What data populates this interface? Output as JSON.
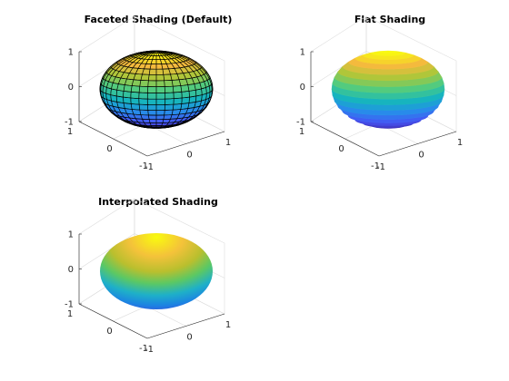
{
  "chart_data": [
    {
      "type": "surface",
      "shading": "faceted",
      "title": "Faceted Shading (Default)",
      "surface": "ellipsoid",
      "x_range": [
        -1,
        1
      ],
      "y_range": [
        -1,
        1
      ],
      "z_range": [
        -1,
        1
      ],
      "x_ticks": [
        "-1",
        "0",
        "1"
      ],
      "y_ticks": [
        "1",
        "0",
        "-1"
      ],
      "z_ticks": [
        "1",
        "0",
        "-1"
      ],
      "colormap": "parula",
      "edge_color": "#000000",
      "grid": true
    },
    {
      "type": "surface",
      "shading": "flat",
      "title": "Flat Shading",
      "surface": "ellipsoid",
      "x_range": [
        -1,
        1
      ],
      "y_range": [
        -1,
        1
      ],
      "z_range": [
        -1,
        1
      ],
      "x_ticks": [
        "-1",
        "0",
        "1"
      ],
      "y_ticks": [
        "1",
        "0",
        "-1"
      ],
      "z_ticks": [
        "1",
        "0",
        "-1"
      ],
      "colormap": "parula",
      "grid": true
    },
    {
      "type": "surface",
      "shading": "interp",
      "title": "Interpolated Shading",
      "surface": "ellipsoid",
      "x_range": [
        -1,
        1
      ],
      "y_range": [
        -1,
        1
      ],
      "z_range": [
        -1,
        1
      ],
      "x_ticks": [
        "-1",
        "0",
        "1"
      ],
      "y_ticks": [
        "1",
        "0",
        "-1"
      ],
      "z_ticks": [
        "1",
        "0",
        "-1"
      ],
      "colormap": "parula",
      "grid": true
    }
  ]
}
